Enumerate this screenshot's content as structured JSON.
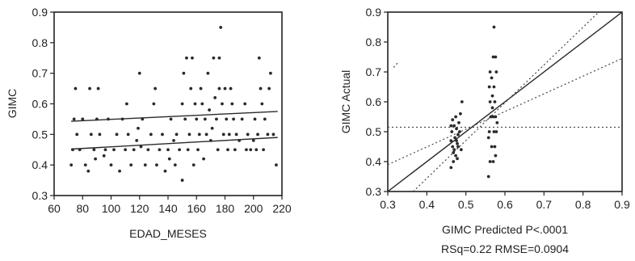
{
  "chart_data": [
    {
      "type": "scatter",
      "title": "",
      "xlabel": "EDAD_MESES",
      "ylabel": "GIMC",
      "xlim": [
        60,
        220
      ],
      "ylim": [
        0.3,
        0.9
      ],
      "x_ticks": [
        "60",
        "80",
        "100",
        "120",
        "140",
        "160",
        "180",
        "200",
        "220"
      ],
      "y_ticks": [
        "0.3",
        "0.4",
        "0.5",
        "0.6",
        "0.7",
        "0.8",
        "0.9"
      ],
      "grid": false,
      "series": [
        {
          "points": [
            [
              72,
              0.4
            ],
            [
              73,
              0.45
            ],
            [
              74,
              0.55
            ],
            [
              75,
              0.65
            ],
            [
              76,
              0.5
            ],
            [
              78,
              0.45
            ],
            [
              80,
              0.55
            ],
            [
              82,
              0.4
            ],
            [
              84,
              0.38
            ],
            [
              85,
              0.65
            ],
            [
              86,
              0.5
            ],
            [
              88,
              0.45
            ],
            [
              89,
              0.42
            ],
            [
              90,
              0.55
            ],
            [
              91,
              0.65
            ],
            [
              92,
              0.5
            ],
            [
              95,
              0.43
            ],
            [
              96,
              0.45
            ],
            [
              98,
              0.55
            ],
            [
              100,
              0.4
            ],
            [
              102,
              0.45
            ],
            [
              104,
              0.5
            ],
            [
              106,
              0.38
            ],
            [
              108,
              0.55
            ],
            [
              110,
              0.45
            ],
            [
              111,
              0.6
            ],
            [
              112,
              0.5
            ],
            [
              114,
              0.4
            ],
            [
              116,
              0.45
            ],
            [
              118,
              0.48
            ],
            [
              119,
              0.52
            ],
            [
              120,
              0.7
            ],
            [
              121,
              0.46
            ],
            [
              122,
              0.55
            ],
            [
              124,
              0.4
            ],
            [
              126,
              0.45
            ],
            [
              128,
              0.5
            ],
            [
              130,
              0.6
            ],
            [
              131,
              0.65
            ],
            [
              132,
              0.4
            ],
            [
              134,
              0.45
            ],
            [
              136,
              0.5
            ],
            [
              138,
              0.38
            ],
            [
              140,
              0.45
            ],
            [
              141,
              0.42
            ],
            [
              142,
              0.55
            ],
            [
              144,
              0.48
            ],
            [
              145,
              0.4
            ],
            [
              146,
              0.5
            ],
            [
              148,
              0.45
            ],
            [
              150,
              0.35
            ],
            [
              150,
              0.6
            ],
            [
              151,
              0.7
            ],
            [
              152,
              0.55
            ],
            [
              153,
              0.75
            ],
            [
              154,
              0.45
            ],
            [
              155,
              0.5
            ],
            [
              156,
              0.65
            ],
            [
              157,
              0.75
            ],
            [
              158,
              0.4
            ],
            [
              159,
              0.6
            ],
            [
              160,
              0.55
            ],
            [
              161,
              0.45
            ],
            [
              162,
              0.5
            ],
            [
              163,
              0.65
            ],
            [
              164,
              0.6
            ],
            [
              165,
              0.42
            ],
            [
              166,
              0.55
            ],
            [
              167,
              0.5
            ],
            [
              168,
              0.7
            ],
            [
              169,
              0.58
            ],
            [
              170,
              0.48
            ],
            [
              171,
              0.52
            ],
            [
              172,
              0.75
            ],
            [
              173,
              0.62
            ],
            [
              174,
              0.55
            ],
            [
              175,
              0.45
            ],
            [
              176,
              0.75
            ],
            [
              176,
              0.65
            ],
            [
              177,
              0.85
            ],
            [
              178,
              0.6
            ],
            [
              179,
              0.5
            ],
            [
              180,
              0.65
            ],
            [
              181,
              0.55
            ],
            [
              182,
              0.45
            ],
            [
              183,
              0.5
            ],
            [
              184,
              0.65
            ],
            [
              185,
              0.6
            ],
            [
              186,
              0.55
            ],
            [
              187,
              0.45
            ],
            [
              188,
              0.5
            ],
            [
              190,
              0.48
            ],
            [
              192,
              0.55
            ],
            [
              194,
              0.6
            ],
            [
              195,
              0.45
            ],
            [
              196,
              0.5
            ],
            [
              198,
              0.45
            ],
            [
              200,
              0.48
            ],
            [
              201,
              0.55
            ],
            [
              202,
              0.45
            ],
            [
              203,
              0.5
            ],
            [
              204,
              0.75
            ],
            [
              205,
              0.65
            ],
            [
              206,
              0.6
            ],
            [
              207,
              0.45
            ],
            [
              208,
              0.55
            ],
            [
              210,
              0.5
            ],
            [
              211,
              0.65
            ],
            [
              212,
              0.7
            ],
            [
              214,
              0.5
            ],
            [
              216,
              0.4
            ]
          ]
        }
      ],
      "lines": [
        {
          "kind": "solid",
          "points": [
            [
              72,
              0.543
            ],
            [
              217,
              0.575
            ]
          ]
        },
        {
          "kind": "solid",
          "points": [
            [
              72,
              0.452
            ],
            [
              217,
              0.49
            ]
          ]
        }
      ]
    },
    {
      "type": "scatter",
      "title": "",
      "xlabel": "GIMC Predicted P<.0001",
      "ylabel": "GIMC Actual",
      "subtitle": "RSq=0.22 RMSE=0.0904",
      "xlim": [
        0.3,
        0.9
      ],
      "ylim": [
        0.3,
        0.9
      ],
      "x_ticks": [
        "0.3",
        "0.4",
        "0.5",
        "0.6",
        "0.7",
        "0.8",
        "0.9"
      ],
      "y_ticks": [
        "0.3",
        "0.4",
        "0.5",
        "0.6",
        "0.7",
        "0.8",
        "0.9"
      ],
      "grid": false,
      "series": [
        {
          "points": [
            [
              0.462,
              0.38
            ],
            [
              0.468,
              0.4
            ],
            [
              0.474,
              0.42
            ],
            [
              0.47,
              0.44
            ],
            [
              0.466,
              0.45
            ],
            [
              0.478,
              0.46
            ],
            [
              0.462,
              0.47
            ],
            [
              0.472,
              0.48
            ],
            [
              0.48,
              0.49
            ],
            [
              0.464,
              0.5
            ],
            [
              0.476,
              0.51
            ],
            [
              0.47,
              0.52
            ],
            [
              0.482,
              0.53
            ],
            [
              0.466,
              0.54
            ],
            [
              0.474,
              0.55
            ],
            [
              0.486,
              0.56
            ],
            [
              0.468,
              0.43
            ],
            [
              0.48,
              0.45
            ],
            [
              0.476,
              0.47
            ],
            [
              0.484,
              0.5
            ],
            [
              0.49,
              0.6
            ],
            [
              0.462,
              0.52
            ],
            [
              0.478,
              0.41
            ],
            [
              0.488,
              0.44
            ],
            [
              0.558,
              0.35
            ],
            [
              0.562,
              0.4
            ],
            [
              0.57,
              0.4
            ],
            [
              0.566,
              0.45
            ],
            [
              0.574,
              0.45
            ],
            [
              0.56,
              0.5
            ],
            [
              0.572,
              0.5
            ],
            [
              0.578,
              0.5
            ],
            [
              0.564,
              0.55
            ],
            [
              0.57,
              0.55
            ],
            [
              0.576,
              0.55
            ],
            [
              0.562,
              0.6
            ],
            [
              0.574,
              0.6
            ],
            [
              0.568,
              0.62
            ],
            [
              0.56,
              0.65
            ],
            [
              0.572,
              0.65
            ],
            [
              0.566,
              0.68
            ],
            [
              0.578,
              0.7
            ],
            [
              0.562,
              0.7
            ],
            [
              0.57,
              0.75
            ],
            [
              0.576,
              0.75
            ],
            [
              0.572,
              0.85
            ],
            [
              0.568,
              0.58
            ],
            [
              0.58,
              0.53
            ],
            [
              0.558,
              0.48
            ],
            [
              0.576,
              0.42
            ]
          ]
        }
      ],
      "lines": [
        {
          "kind": "solid",
          "points": [
            [
              0.3,
              0.3
            ],
            [
              0.9,
              0.9
            ]
          ]
        },
        {
          "kind": "dotted",
          "points": [
            [
              0.3,
              0.515
            ],
            [
              0.9,
              0.515
            ]
          ]
        },
        {
          "kind": "dotted",
          "points": [
            [
              0.3,
              0.39
            ],
            [
              0.9,
              0.745
            ]
          ]
        },
        {
          "kind": "dotted",
          "points": [
            [
              0.365,
              0.3
            ],
            [
              0.84,
              0.9
            ]
          ]
        },
        {
          "kind": "dotted",
          "points": [
            [
              0.315,
              0.715
            ],
            [
              0.325,
              0.73
            ]
          ]
        }
      ]
    }
  ]
}
